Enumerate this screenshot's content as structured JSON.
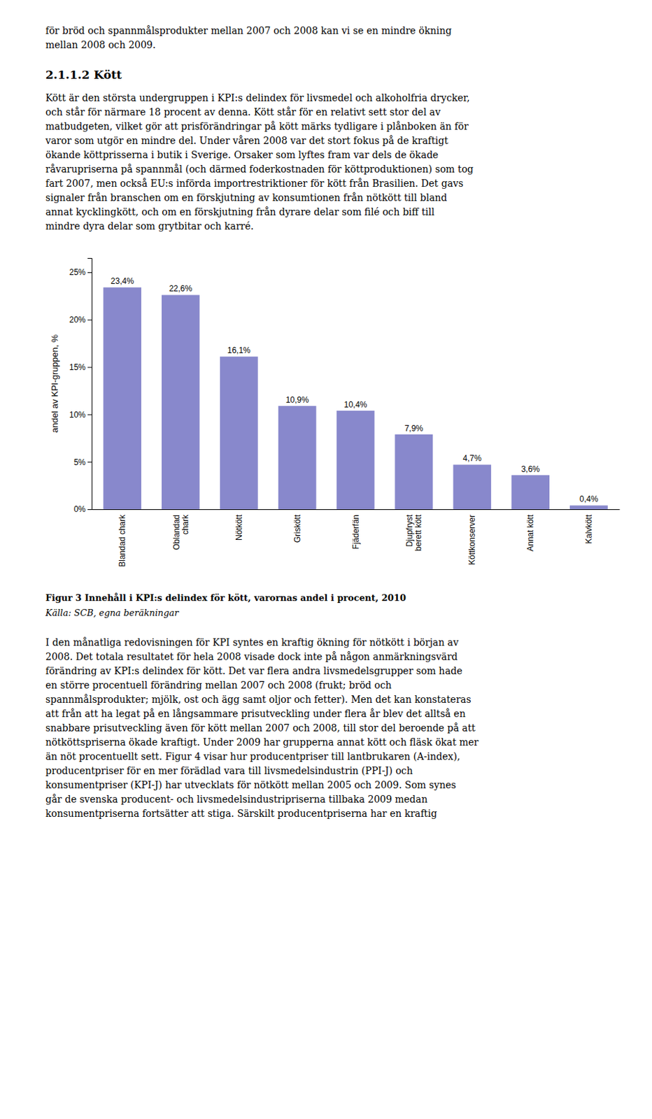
{
  "text_above": [
    "för bröd och spannmålsprodukter mellan 2007 och 2008 kan vi se en mindre ökning",
    "mellan 2008 och 2009."
  ],
  "heading": "2.1.1.2 Kött",
  "paragraph_above": [
    "Kött är den största undergruppen i KPI:s delindex för livsmedel och alkoholfria drycker,",
    "och står för närmare 18 procent av denna. Kött står för en relativt sett stor del av",
    "matbudgeten, vilket gör att prisförändringar på kött märks tydligare i plånboken än för",
    "varor som utgör en mindre del. Under våren 2008 var det stort fokus på de kraftigt",
    "ökande köttprisserna i butik i Sverige. Orsaker som lyftes fram var dels de ökade",
    "råvarupriserna på spannmål (och därmed foderkostnaden för köttproduktionen) som tog",
    "fart 2007, men också EU:s införda importrestriktioner för kött från Brasilien. Det gavs",
    "signaler från branschen om en förskjutning av konsumtionen från nötkött till bland",
    "annat kycklingkött, och om en förskjutning från dyrare delar som filé och biff till",
    "mindre dyra delar som grytbitar och karré."
  ],
  "chart_data": {
    "type": "bar",
    "categories": [
      "Blandad chark",
      "Oblandad\nchark",
      "Nötkött",
      "Griskött",
      "Fjäderfän",
      "Djupfryst\nberett kött",
      "Köttkonserver",
      "Annat kött",
      "Kalvkött"
    ],
    "values": [
      23.4,
      22.6,
      16.1,
      10.9,
      10.4,
      7.9,
      4.7,
      3.6,
      0.4
    ],
    "value_labels": [
      "23,4%",
      "22,6%",
      "16,1%",
      "10,9%",
      "10,4%",
      "7,9%",
      "4,7%",
      "3,6%",
      "0,4%"
    ],
    "data_labels": true,
    "color": "#8888cc",
    "ylabel": "andel av KPI-gruppen, %",
    "ylim": [
      0,
      26.5
    ],
    "yticks": [
      {
        "value": 0,
        "label": "0%"
      },
      {
        "value": 5,
        "label": "5%"
      },
      {
        "value": 10,
        "label": "10%"
      },
      {
        "value": 15,
        "label": "15%"
      },
      {
        "value": 20,
        "label": "20%"
      },
      {
        "value": 25,
        "label": "25%"
      }
    ]
  },
  "caption": "Figur 3 Innehåll i KPI:s delindex för kött, varornas andel i procent, 2010",
  "source": "Källa: SCB, egna beräkningar",
  "paragraph_below": [
    "I den månatliga redovisningen för KPI syntes en kraftig ökning för nötkött i början av",
    "2008. Det totala resultatet för hela 2008 visade dock inte på någon anmärkningsvärd",
    "förändring av KPI:s delindex för kött. Det var flera andra livsmedelsgrupper som hade",
    "en större procentuell förändring mellan 2007 och 2008 (frukt; bröd och",
    "spannmålsprodukter; mjölk, ost och ägg samt oljor och fetter). Men det kan konstateras",
    "att från att ha legat på en långsammare prisutveckling under flera år blev det alltså en",
    "snabbare prisutveckling även för kött mellan 2007 och 2008, till stor del beroende på att",
    "nötköttspriserna ökade kraftigt. Under 2009 har grupperna annat kött och fläsk ökat mer",
    "än nöt procentuellt sett. Figur 4 visar hur producentpriser till lantbrukaren (A-index),",
    "producentpriser för en mer förädlad vara till livsmedelsindustrin (PPI-J) och",
    "konsumentpriser (KPI-J) har utvecklats för nötkött mellan 2005 och 2009. Som synes",
    "går de svenska producent- och livsmedelsindustripriserna tillbaka 2009 medan",
    "konsumentpriserna fortsätter att stiga. Särskilt producentpriserna har en kraftig"
  ]
}
